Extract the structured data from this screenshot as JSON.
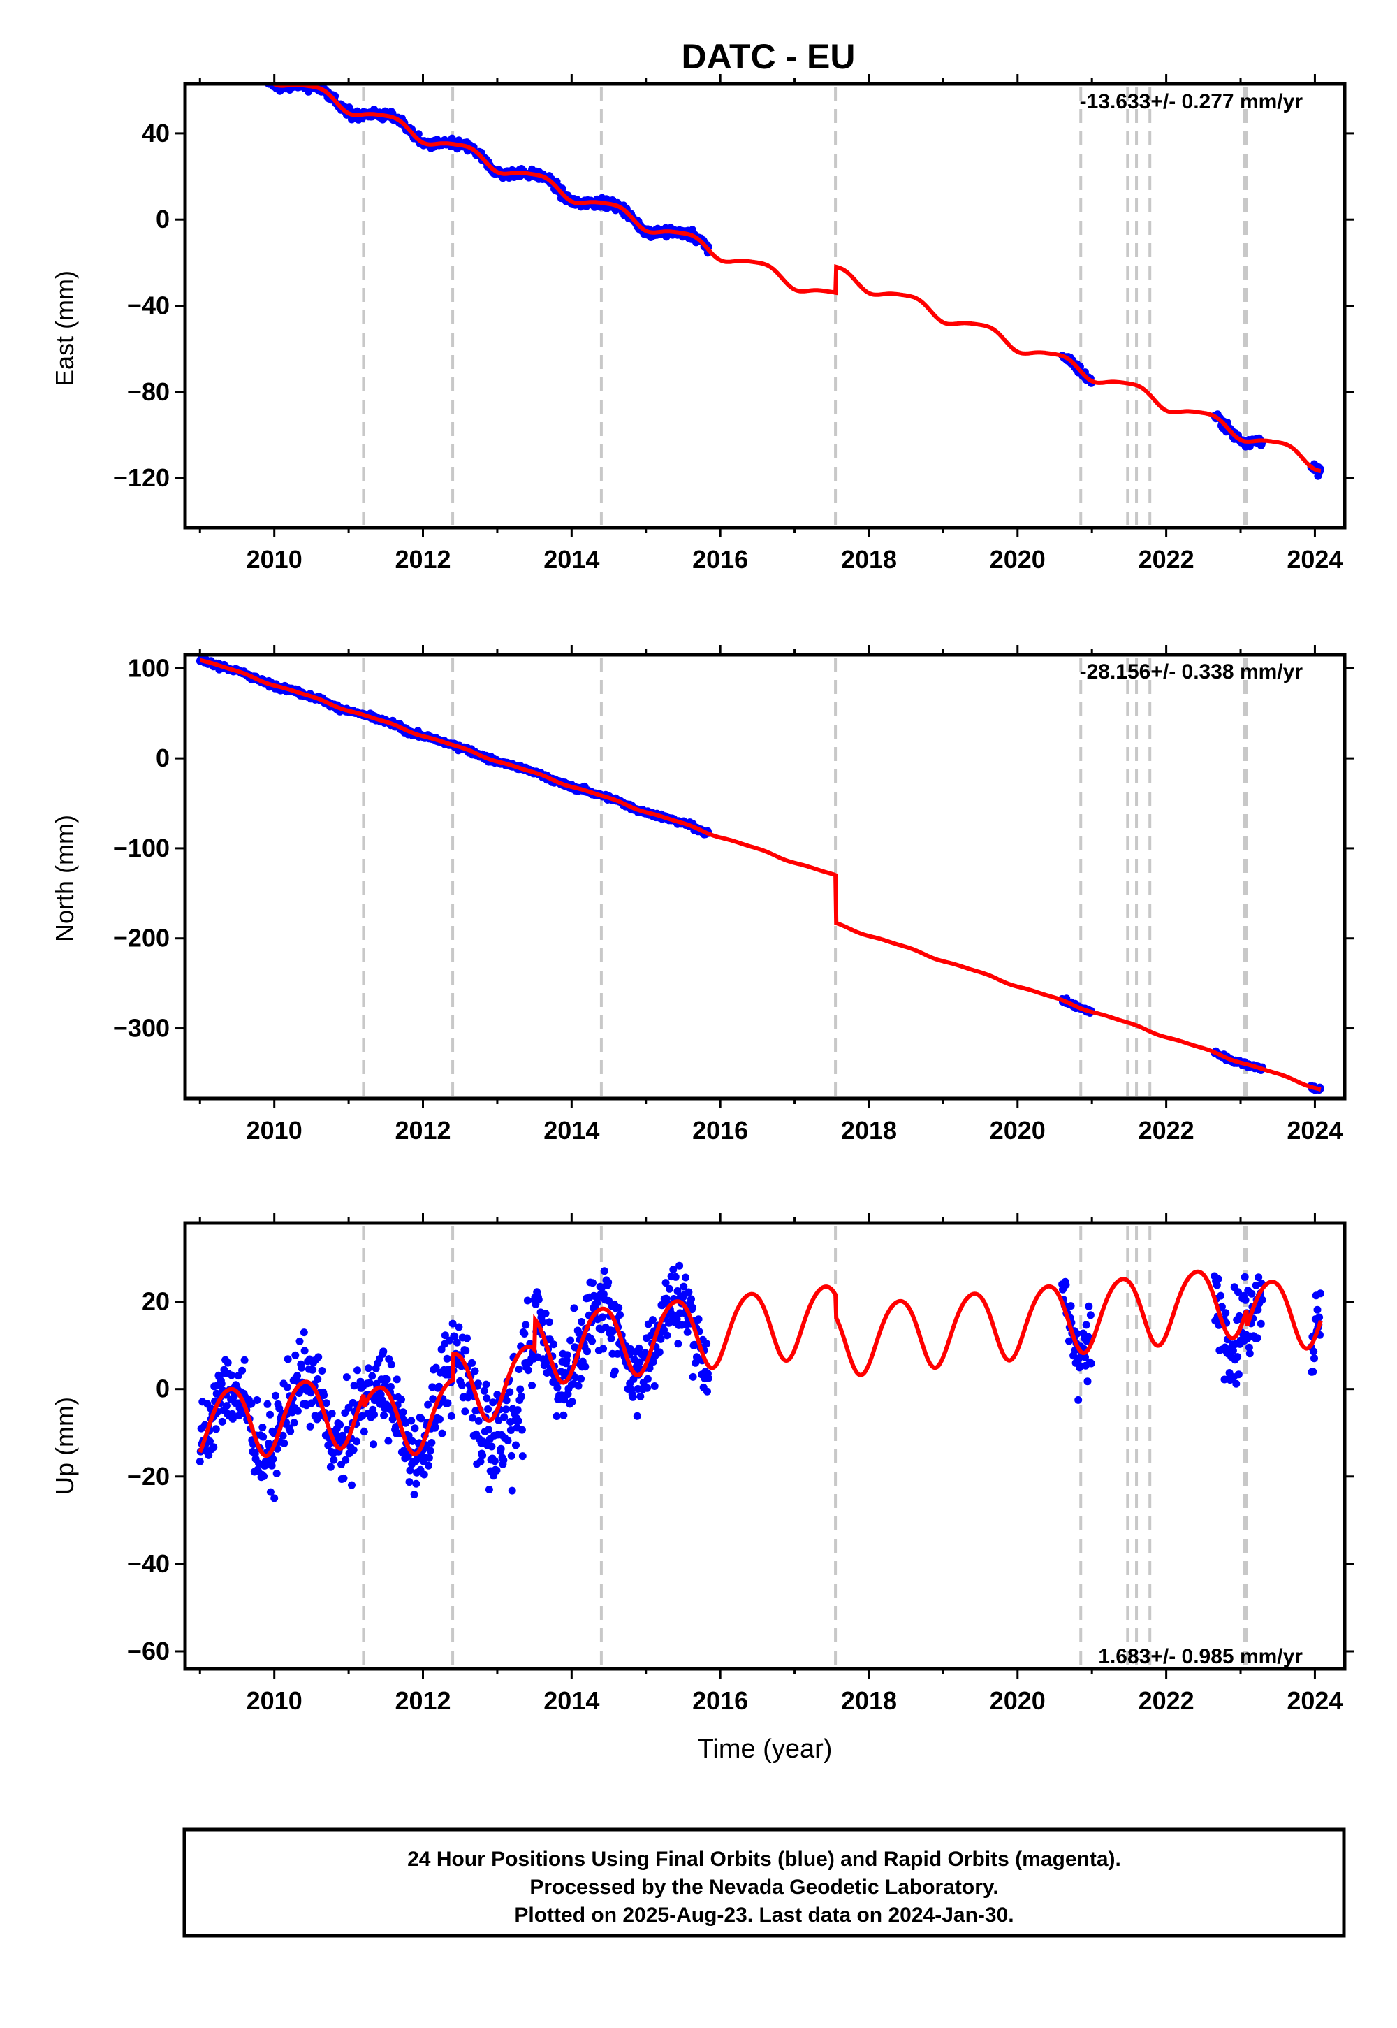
{
  "title": "DATC - EU",
  "xlabel": "Time (year)",
  "footer": {
    "line1": "24 Hour Positions Using Final Orbits (blue) and Rapid Orbits (magenta).",
    "line2": "Processed by the Nevada Geodetic Laboratory.",
    "line3": "Plotted on 2025-Aug-23. Last data on 2024-Jan-30."
  },
  "colors": {
    "data": "#0000ff",
    "model": "#ff0000",
    "event_line": "#c8c8c8",
    "frame": "#000000"
  },
  "chart_data": [
    {
      "type": "scatter",
      "panel": "East",
      "ylabel": "East (mm)",
      "xlim": [
        2008.8,
        2024.4
      ],
      "ylim": [
        -143,
        63
      ],
      "xticks": [
        2010,
        2012,
        2014,
        2016,
        2018,
        2020,
        2022,
        2024
      ],
      "yticks": [
        40,
        0,
        -40,
        -80,
        -120
      ],
      "ytick_labels": [
        "40",
        "0",
        "−40",
        "−80",
        "−120"
      ],
      "rate_text": "-13.633+/- 0.277 mm/yr",
      "rate_position": "top-right",
      "grid": false,
      "event_lines": [
        2011.2,
        2012.4,
        2014.4,
        2017.55,
        2020.85,
        2021.48,
        2021.6,
        2021.78,
        2023.05,
        2023.08
      ],
      "data_segments": [
        [
          2009.0,
          2015.85
        ],
        [
          2020.6,
          2021.0
        ],
        [
          2022.65,
          2023.3
        ],
        [
          2023.95,
          2024.08
        ]
      ],
      "model": {
        "intercept": 80.0,
        "rate": -13.633,
        "t0": 2009.0,
        "offsets": [
          {
            "t": 2017.55,
            "value": 12.0
          }
        ],
        "annual_amp": 3.0,
        "annual_phase": 0.3,
        "semiannual_amp": 0.6,
        "semiannual_phase": 0.1,
        "noise": 1.5
      }
    },
    {
      "type": "scatter",
      "panel": "North",
      "ylabel": "North (mm)",
      "xlim": [
        2008.8,
        2024.4
      ],
      "ylim": [
        -378,
        115
      ],
      "xticks": [
        2010,
        2012,
        2014,
        2016,
        2018,
        2020,
        2022,
        2024
      ],
      "yticks": [
        100,
        0,
        -100,
        -200,
        -300
      ],
      "ytick_labels": [
        "100",
        "0",
        "−100",
        "−200",
        "−300"
      ],
      "rate_text": "-28.156+/- 0.338 mm/yr",
      "rate_position": "top-right",
      "grid": false,
      "event_lines": [
        2011.2,
        2012.4,
        2014.4,
        2017.55,
        2020.85,
        2021.48,
        2021.6,
        2021.78,
        2023.05,
        2023.08
      ],
      "data_segments": [
        [
          2009.0,
          2015.85
        ],
        [
          2020.6,
          2021.0
        ],
        [
          2022.65,
          2023.3
        ],
        [
          2023.95,
          2024.08
        ]
      ],
      "model": {
        "intercept": 110.0,
        "rate": -28.156,
        "t0": 2009.0,
        "offsets": [
          {
            "t": 2017.55,
            "value": -53.0
          }
        ],
        "annual_amp": 1.0,
        "annual_phase": 0.2,
        "semiannual_amp": 0.4,
        "semiannual_phase": 0.0,
        "noise": 2.0
      }
    },
    {
      "type": "scatter",
      "panel": "Up",
      "ylabel": "Up (mm)",
      "xlim": [
        2008.8,
        2024.4
      ],
      "ylim": [
        -64,
        38
      ],
      "xticks": [
        2010,
        2012,
        2014,
        2016,
        2018,
        2020,
        2022,
        2024
      ],
      "yticks": [
        20,
        0,
        -20,
        -40,
        -60
      ],
      "ytick_labels": [
        "20",
        "0",
        "−20",
        "−40",
        "−60"
      ],
      "rate_text": "1.683+/- 0.985 mm/yr",
      "rate_position": "bottom-right",
      "grid": false,
      "event_lines": [
        2011.2,
        2012.4,
        2014.4,
        2017.55,
        2020.85,
        2021.48,
        2021.6,
        2021.78,
        2023.05,
        2023.08
      ],
      "data_segments": [
        [
          2009.0,
          2015.85
        ],
        [
          2020.6,
          2021.0
        ],
        [
          2022.65,
          2023.3
        ],
        [
          2023.95,
          2024.08
        ]
      ],
      "model": {
        "intercept": -8.0,
        "rate": 1.683,
        "t0": 2009.0,
        "offsets": [
          {
            "t": 2011.2,
            "value": -3.0
          },
          {
            "t": 2012.4,
            "value": 6.0
          },
          {
            "t": 2013.5,
            "value": 7.0
          },
          {
            "t": 2017.55,
            "value": -5.0
          },
          {
            "t": 2023.08,
            "value": -4.0
          }
        ],
        "annual_amp": 8.0,
        "annual_phase": 0.15,
        "semiannual_amp": 0.8,
        "semiannual_phase": 0.0,
        "noise": 6.5
      }
    }
  ]
}
